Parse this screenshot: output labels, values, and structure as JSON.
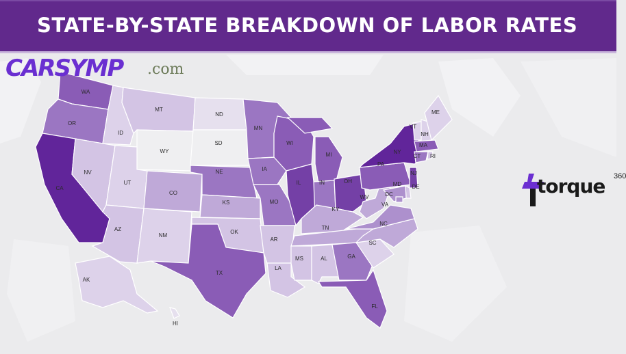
{
  "header": {
    "title": "STATE-BY-STATE BREAKDOWN OF LABOR RATES"
  },
  "watermark": {
    "brand": "CARSYMP",
    "suffix": ".com"
  },
  "logo": {
    "name": "torque",
    "superscript": "360",
    "accent": "#6b2fd1"
  },
  "color_scale": [
    "#efeff1",
    "#e6e0ee",
    "#ddd2ea",
    "#d3c4e4",
    "#bfa9d8",
    "#ad90cd",
    "#9b76c2",
    "#8a5cb6",
    "#7440a6",
    "#61259a"
  ],
  "states": [
    {
      "code": "WA",
      "level": 7
    },
    {
      "code": "OR",
      "level": 6
    },
    {
      "code": "CA",
      "level": 9
    },
    {
      "code": "NV",
      "level": 3
    },
    {
      "code": "ID",
      "level": 2
    },
    {
      "code": "MT",
      "level": 3
    },
    {
      "code": "WY",
      "level": 0
    },
    {
      "code": "UT",
      "level": 2
    },
    {
      "code": "AZ",
      "level": 3
    },
    {
      "code": "CO",
      "level": 4
    },
    {
      "code": "NM",
      "level": 2
    },
    {
      "code": "ND",
      "level": 1
    },
    {
      "code": "SD",
      "level": 0
    },
    {
      "code": "NE",
      "level": 6
    },
    {
      "code": "KS",
      "level": 4
    },
    {
      "code": "OK",
      "level": 3
    },
    {
      "code": "TX",
      "level": 7
    },
    {
      "code": "MN",
      "level": 6
    },
    {
      "code": "IA",
      "level": 6
    },
    {
      "code": "MO",
      "level": 6
    },
    {
      "code": "AR",
      "level": 3
    },
    {
      "code": "LA",
      "level": 3
    },
    {
      "code": "WI",
      "level": 7
    },
    {
      "code": "IL",
      "level": 8
    },
    {
      "code": "MI",
      "level": 7
    },
    {
      "code": "IN",
      "level": 6
    },
    {
      "code": "OH",
      "level": 8
    },
    {
      "code": "KY",
      "level": 4
    },
    {
      "code": "TN",
      "level": 4
    },
    {
      "code": "MS",
      "level": 3
    },
    {
      "code": "AL",
      "level": 3
    },
    {
      "code": "GA",
      "level": 6
    },
    {
      "code": "FL",
      "level": 7
    },
    {
      "code": "SC",
      "level": 2
    },
    {
      "code": "NC",
      "level": 4
    },
    {
      "code": "VA",
      "level": 5
    },
    {
      "code": "WV",
      "level": 4
    },
    {
      "code": "PA",
      "level": 7
    },
    {
      "code": "NY",
      "level": 9
    },
    {
      "code": "VT",
      "level": 2
    },
    {
      "code": "NH",
      "level": 2
    },
    {
      "code": "ME",
      "level": 2
    },
    {
      "code": "MA",
      "level": 7
    },
    {
      "code": "CT",
      "level": 6
    },
    {
      "code": "RI",
      "level": 3
    },
    {
      "code": "NJ",
      "level": 8
    },
    {
      "code": "DE",
      "level": 3
    },
    {
      "code": "MD",
      "level": 5
    },
    {
      "code": "DC",
      "level": 5
    },
    {
      "code": "AK",
      "level": 2
    },
    {
      "code": "HI",
      "level": 1
    }
  ]
}
